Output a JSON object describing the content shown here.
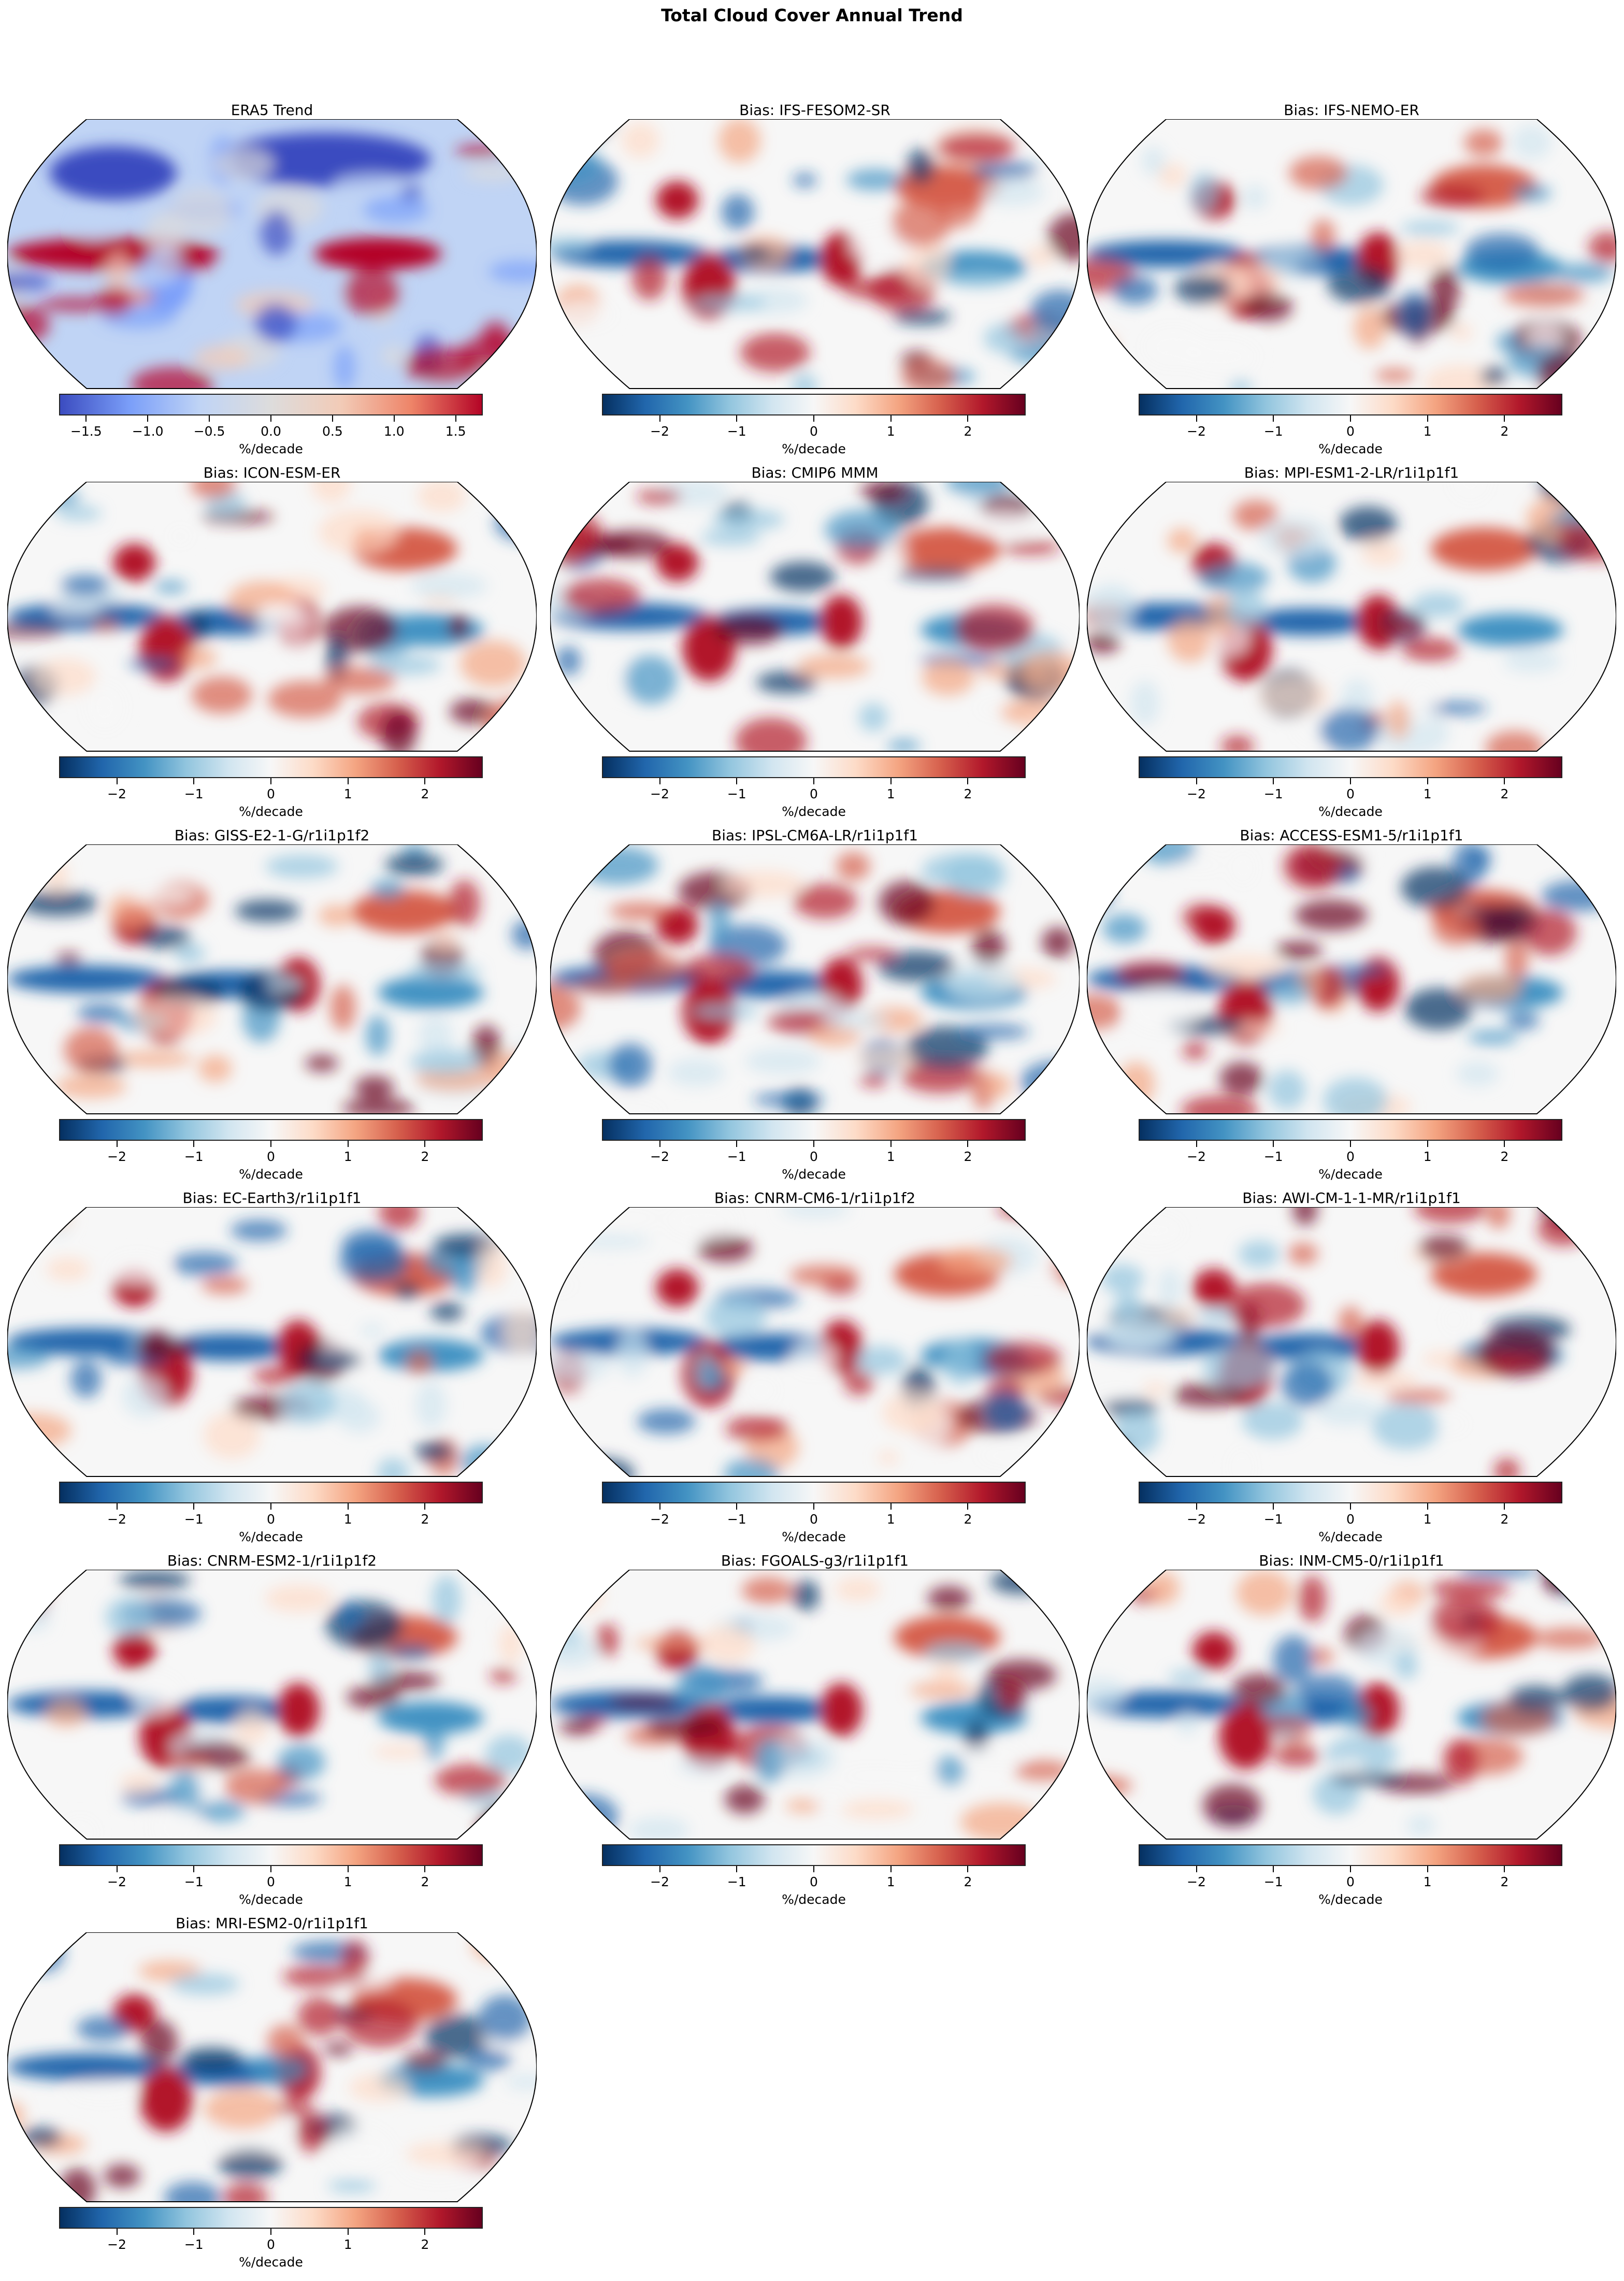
{
  "chart_data": {
    "type": "heatmap",
    "title": "Total Cloud Cover Annual Trend",
    "projection": "Robinson",
    "colorbar_label": "%/decade",
    "panels": [
      {
        "title": "ERA5 Trend",
        "cmap": "coolwarm",
        "range": [
          -1.72,
          1.72
        ],
        "ticks": [
          -1.5,
          -1.0,
          -0.5,
          0.0,
          0.5,
          1.0,
          1.5
        ],
        "tick_labels": [
          "−1.5",
          "−1.0",
          "−0.5",
          "0.0",
          "0.5",
          "1.0",
          "1.5"
        ]
      },
      {
        "title": "Bias: IFS-FESOM2-SR",
        "cmap": "RdBu_r",
        "range": [
          -2.75,
          2.75
        ],
        "ticks": [
          -2,
          -1,
          0,
          1,
          2
        ],
        "tick_labels": [
          "−2",
          "−1",
          "0",
          "1",
          "2"
        ]
      },
      {
        "title": "Bias: IFS-NEMO-ER",
        "cmap": "RdBu_r",
        "range": [
          -2.75,
          2.75
        ],
        "ticks": [
          -2,
          -1,
          0,
          1,
          2
        ],
        "tick_labels": [
          "−2",
          "−1",
          "0",
          "1",
          "2"
        ]
      },
      {
        "title": "Bias: ICON-ESM-ER",
        "cmap": "RdBu_r",
        "range": [
          -2.75,
          2.75
        ],
        "ticks": [
          -2,
          -1,
          0,
          1,
          2
        ],
        "tick_labels": [
          "−2",
          "−1",
          "0",
          "1",
          "2"
        ]
      },
      {
        "title": "Bias: CMIP6 MMM",
        "cmap": "RdBu_r",
        "range": [
          -2.75,
          2.75
        ],
        "ticks": [
          -2,
          -1,
          0,
          1,
          2
        ],
        "tick_labels": [
          "−2",
          "−1",
          "0",
          "1",
          "2"
        ]
      },
      {
        "title": "Bias: MPI-ESM1-2-LR/r1i1p1f1",
        "cmap": "RdBu_r",
        "range": [
          -2.75,
          2.75
        ],
        "ticks": [
          -2,
          -1,
          0,
          1,
          2
        ],
        "tick_labels": [
          "−2",
          "−1",
          "0",
          "1",
          "2"
        ]
      },
      {
        "title": "Bias: GISS-E2-1-G/r1i1p1f2",
        "cmap": "RdBu_r",
        "range": [
          -2.75,
          2.75
        ],
        "ticks": [
          -2,
          -1,
          0,
          1,
          2
        ],
        "tick_labels": [
          "−2",
          "−1",
          "0",
          "1",
          "2"
        ]
      },
      {
        "title": "Bias: IPSL-CM6A-LR/r1i1p1f1",
        "cmap": "RdBu_r",
        "range": [
          -2.75,
          2.75
        ],
        "ticks": [
          -2,
          -1,
          0,
          1,
          2
        ],
        "tick_labels": [
          "−2",
          "−1",
          "0",
          "1",
          "2"
        ]
      },
      {
        "title": "Bias: ACCESS-ESM1-5/r1i1p1f1",
        "cmap": "RdBu_r",
        "range": [
          -2.75,
          2.75
        ],
        "ticks": [
          -2,
          -1,
          0,
          1,
          2
        ],
        "tick_labels": [
          "−2",
          "−1",
          "0",
          "1",
          "2"
        ]
      },
      {
        "title": "Bias: EC-Earth3/r1i1p1f1",
        "cmap": "RdBu_r",
        "range": [
          -2.75,
          2.75
        ],
        "ticks": [
          -2,
          -1,
          0,
          1,
          2
        ],
        "tick_labels": [
          "−2",
          "−1",
          "0",
          "1",
          "2"
        ]
      },
      {
        "title": "Bias: CNRM-CM6-1/r1i1p1f2",
        "cmap": "RdBu_r",
        "range": [
          -2.75,
          2.75
        ],
        "ticks": [
          -2,
          -1,
          0,
          1,
          2
        ],
        "tick_labels": [
          "−2",
          "−1",
          "0",
          "1",
          "2"
        ]
      },
      {
        "title": "Bias: AWI-CM-1-1-MR/r1i1p1f1",
        "cmap": "RdBu_r",
        "range": [
          -2.75,
          2.75
        ],
        "ticks": [
          -2,
          -1,
          0,
          1,
          2
        ],
        "tick_labels": [
          "−2",
          "−1",
          "0",
          "1",
          "2"
        ]
      },
      {
        "title": "Bias: CNRM-ESM2-1/r1i1p1f2",
        "cmap": "RdBu_r",
        "range": [
          -2.75,
          2.75
        ],
        "ticks": [
          -2,
          -1,
          0,
          1,
          2
        ],
        "tick_labels": [
          "−2",
          "−1",
          "0",
          "1",
          "2"
        ]
      },
      {
        "title": "Bias: FGOALS-g3/r1i1p1f1",
        "cmap": "RdBu_r",
        "range": [
          -2.75,
          2.75
        ],
        "ticks": [
          -2,
          -1,
          0,
          1,
          2
        ],
        "tick_labels": [
          "−2",
          "−1",
          "0",
          "1",
          "2"
        ]
      },
      {
        "title": "Bias: INM-CM5-0/r1i1p1f1",
        "cmap": "RdBu_r",
        "range": [
          -2.75,
          2.75
        ],
        "ticks": [
          -2,
          -1,
          0,
          1,
          2
        ],
        "tick_labels": [
          "−2",
          "−1",
          "0",
          "1",
          "2"
        ]
      },
      {
        "title": "Bias: MRI-ESM2-0/r1i1p1f1",
        "cmap": "RdBu_r",
        "range": [
          -2.75,
          2.75
        ],
        "ticks": [
          -2,
          -1,
          0,
          1,
          2
        ],
        "tick_labels": [
          "−2",
          "−1",
          "0",
          "1",
          "2"
        ]
      }
    ],
    "colormaps": {
      "coolwarm": [
        "#3b4cc0",
        "#7b9ff9",
        "#c0d4f5",
        "#dddcdc",
        "#f2cbb7",
        "#ee8468",
        "#b40426"
      ],
      "RdBu_r": [
        "#053061",
        "#2166ac",
        "#4393c3",
        "#92c5de",
        "#d1e5f0",
        "#f7f7f7",
        "#fddbc7",
        "#f4a582",
        "#d6604d",
        "#b2182b",
        "#67001f"
      ]
    }
  }
}
